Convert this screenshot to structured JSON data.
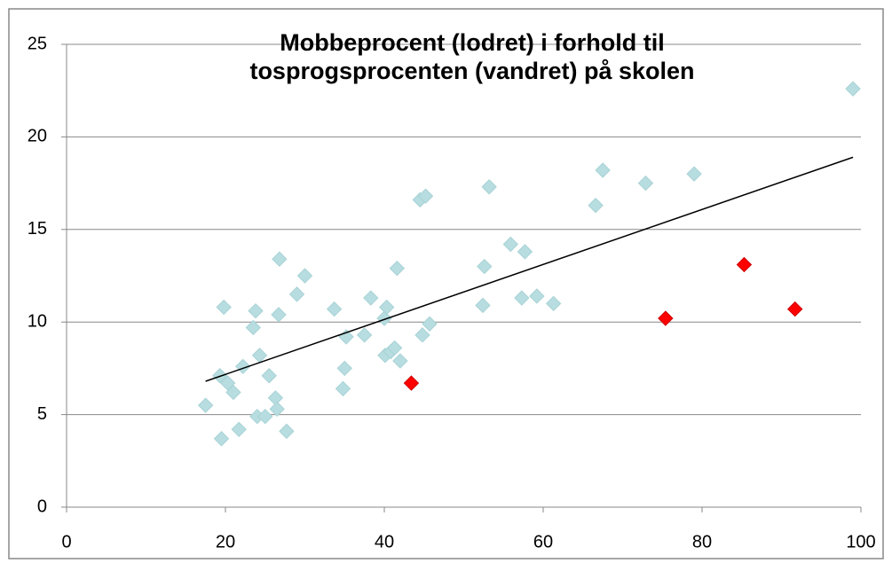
{
  "chart_data": {
    "type": "scatter",
    "title": [
      "Mobbeprocent (lodret) i forhold til",
      "tosprogsprocenten (vandret) på skolen"
    ],
    "series": [
      {
        "color": "#b7dde0",
        "x": [
          17.5,
          19.3,
          19.5,
          19.8,
          20.3,
          21,
          21.7,
          22.2,
          23.5,
          23.8,
          24,
          24.3,
          25,
          25.5,
          26.3,
          26.5,
          26.7,
          26.8,
          27.7,
          29,
          30,
          33.7,
          34.8,
          35,
          35.2,
          37.5,
          38.3,
          40,
          40.3,
          40.1,
          40.8,
          41.3,
          41.6,
          42,
          44.5,
          44.8,
          45.2,
          45.7,
          52.4,
          52.6,
          53.2,
          55.9,
          57.3,
          57.7,
          59.2,
          61.3,
          66.6,
          67.5,
          72.9,
          79,
          99
        ],
        "values": [
          5.5,
          7.1,
          3.7,
          10.8,
          6.7,
          6.2,
          4.2,
          7.6,
          9.7,
          10.6,
          4.9,
          8.2,
          4.9,
          7.1,
          5.9,
          5.3,
          10.4,
          13.4,
          4.1,
          11.5,
          12.5,
          10.7,
          6.4,
          7.5,
          9.2,
          9.3,
          11.3,
          10.2,
          10.8,
          8.2,
          8.4,
          8.6,
          12.9,
          7.9,
          16.6,
          9.3,
          16.8,
          9.9,
          10.9,
          13.0,
          17.3,
          14.2,
          11.3,
          13.8,
          11.4,
          11.0,
          16.3,
          18.2,
          17.5,
          18.0,
          22.6
        ]
      },
      {
        "color": "#ff0000",
        "x": [
          43.4,
          75.4,
          85.3,
          91.7
        ],
        "values": [
          6.7,
          10.2,
          13.1,
          10.7
        ]
      }
    ],
    "trendline": {
      "color": "#000000",
      "x": [
        17.5,
        99
      ],
      "values": [
        6.8,
        18.9
      ]
    },
    "xlim": [
      0,
      100
    ],
    "xticks": [
      0,
      20,
      40,
      60,
      80,
      100
    ],
    "ylim": [
      0,
      25
    ],
    "yticks": [
      0,
      5,
      10,
      15,
      20,
      25
    ],
    "grid": true
  }
}
